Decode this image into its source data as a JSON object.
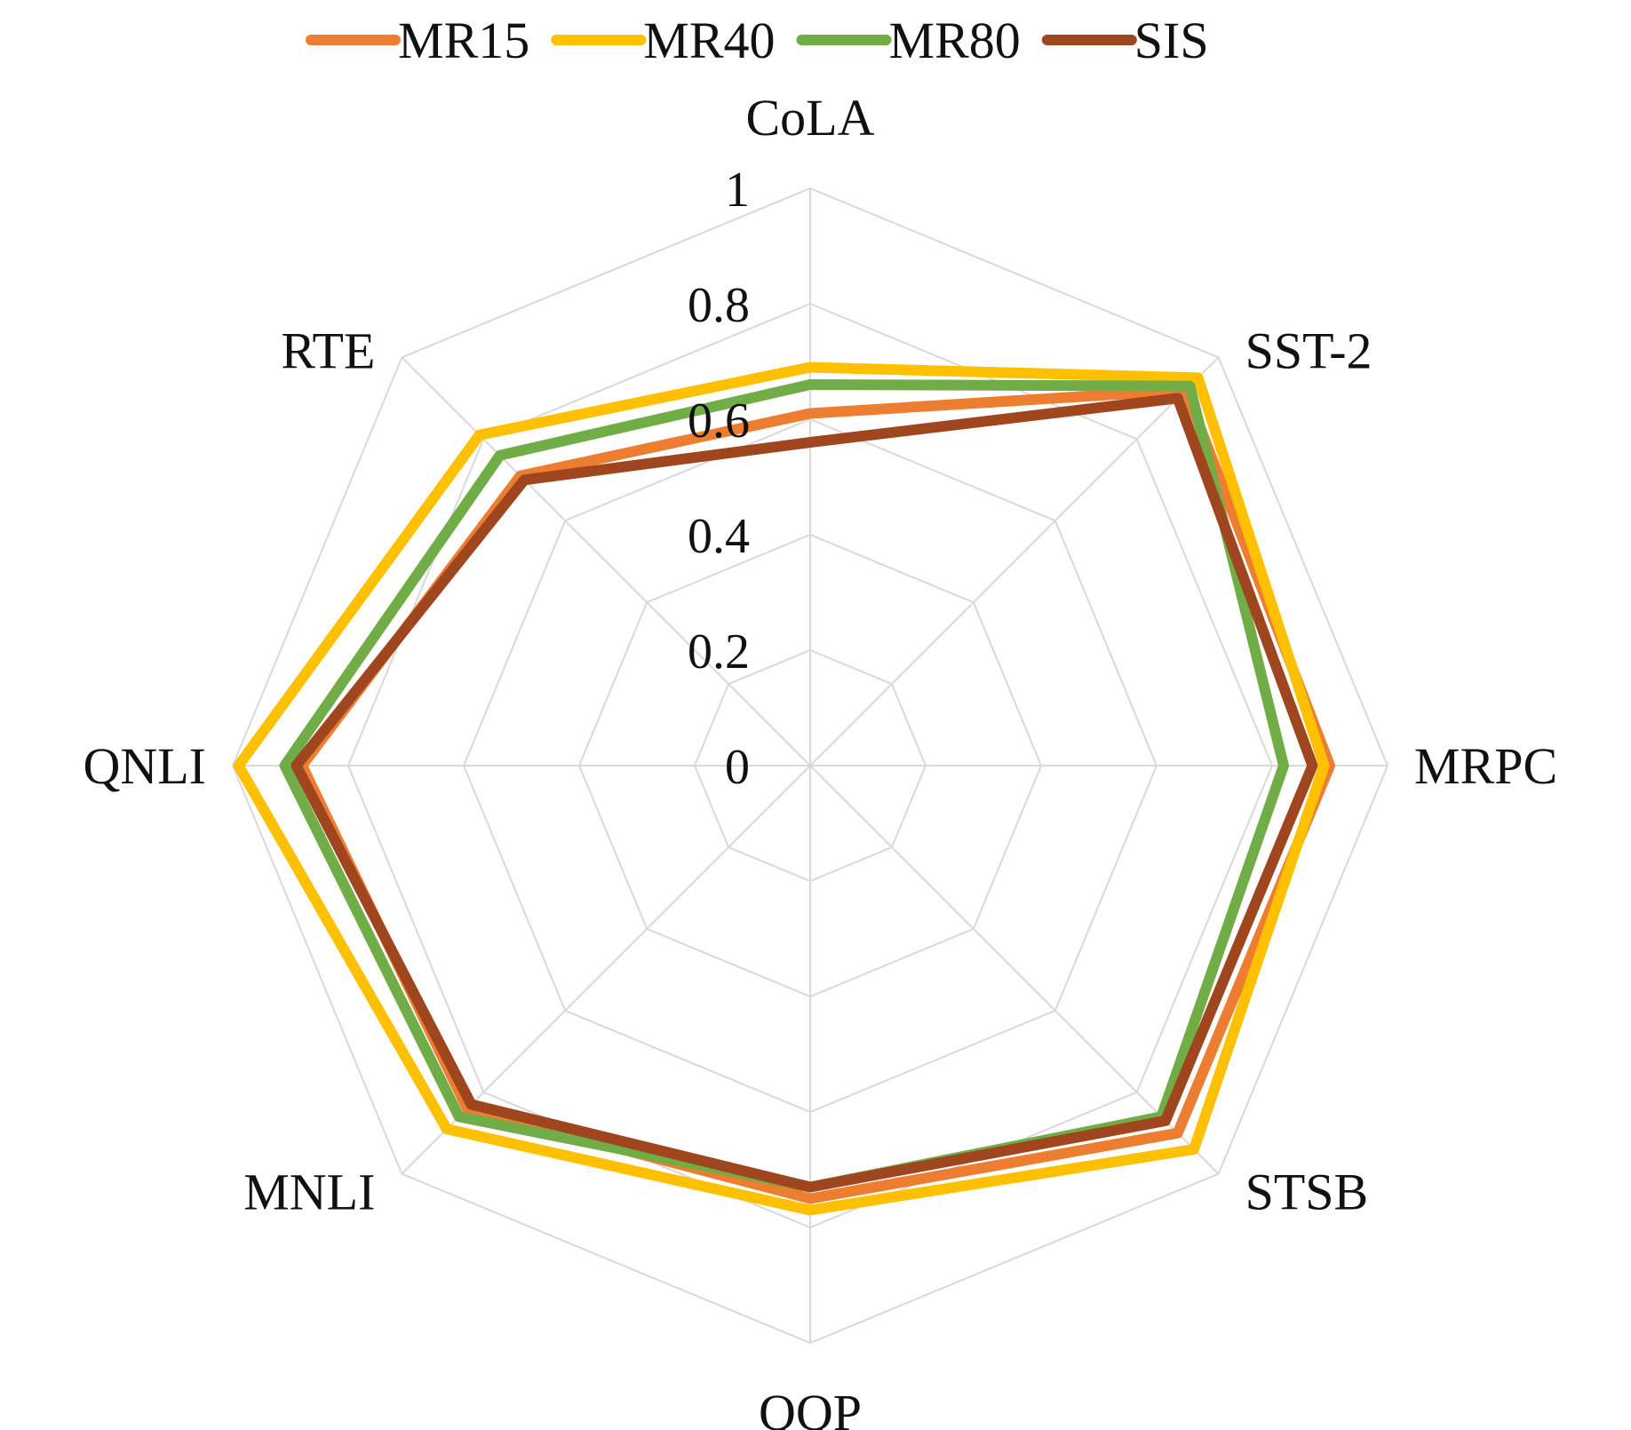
{
  "chart_data": {
    "type": "radar",
    "title": "",
    "axes": [
      "CoLA",
      "SST-2",
      "MRPC",
      "STSB",
      "QQP",
      "MNLI",
      "QNLI",
      "RTE"
    ],
    "ticks": [
      "0",
      "0.2",
      "0.4",
      "0.6",
      "0.8",
      "1"
    ],
    "range": [
      0,
      1
    ],
    "grid": true,
    "legend_position": "top",
    "series": [
      {
        "name": "MR15",
        "color": "#ED7D31",
        "values": [
          0.61,
          0.92,
          0.9,
          0.9,
          0.75,
          0.84,
          0.88,
          0.71
        ]
      },
      {
        "name": "MR40",
        "color": "#FFC000",
        "values": [
          0.69,
          0.95,
          0.89,
          0.94,
          0.77,
          0.89,
          0.99,
          0.81
        ]
      },
      {
        "name": "MR80",
        "color": "#70AD47",
        "values": [
          0.66,
          0.93,
          0.82,
          0.86,
          0.73,
          0.86,
          0.91,
          0.76
        ]
      },
      {
        "name": "SIS",
        "color": "#A0461E",
        "values": [
          0.56,
          0.9,
          0.87,
          0.87,
          0.73,
          0.83,
          0.89,
          0.7
        ]
      }
    ]
  }
}
